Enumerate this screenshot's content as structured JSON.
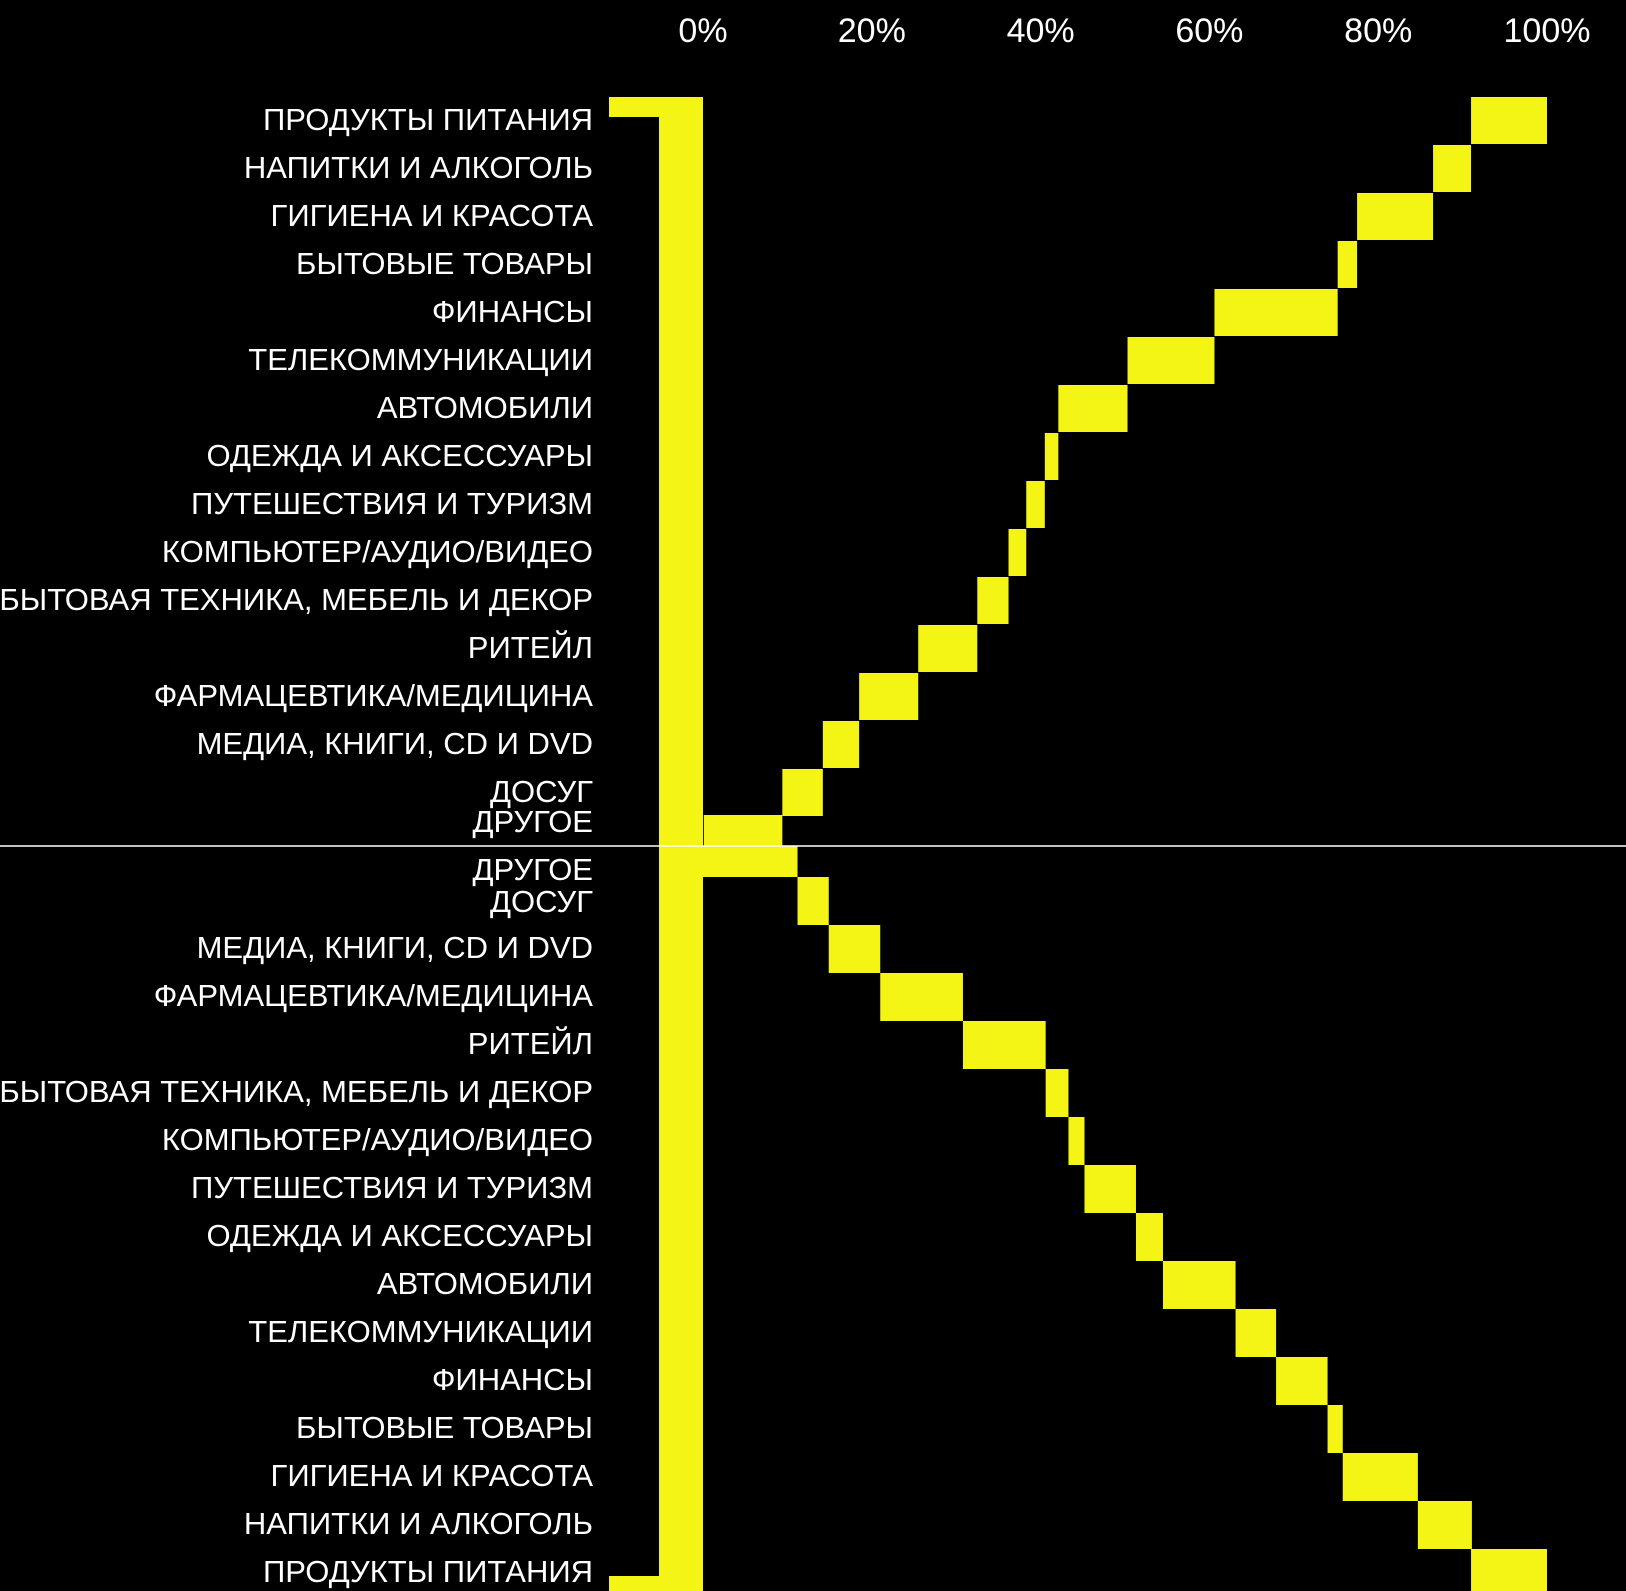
{
  "chart_data": {
    "type": "bar",
    "subtype": "waterfall-cumulative-mirrored",
    "bar_color": "#f5f515",
    "background": "#000000",
    "divider_color": "#ffffff",
    "x_ticks": [
      "0%",
      "20%",
      "40%",
      "60%",
      "80%",
      "100%"
    ],
    "xlim": [
      0,
      100
    ],
    "grid": false,
    "legend": "none",
    "panels": [
      {
        "name": "top",
        "order": "descending",
        "categories": [
          "ПРОДУКТЫ ПИТАНИЯ",
          "НАПИТКИ И АЛКОГОЛЬ",
          "ГИГИЕНА И КРАСОТА",
          "БЫТОВЫЕ ТОВАРЫ",
          "ФИНАНСЫ",
          "ТЕЛЕКОММУНИКАЦИИ",
          "АВТОМОБИЛИ",
          "ОДЕЖДА И АКСЕССУАРЫ",
          "ПУТЕШЕСТВИЯ И ТУРИЗМ",
          "КОМПЬЮТЕР/АУДИО/ВИДЕО",
          "БЫТОВАЯ ТЕХНИКА, МЕБЕЛЬ И ДЕКОР",
          "РИТЕЙЛ",
          "ФАРМАЦЕВТИКА/МЕДИЦИНА",
          "МЕДИА, КНИГИ, CD И DVD",
          "ДОСУГ",
          "ДРУГОЕ"
        ],
        "values": [
          9.0,
          4.5,
          9.0,
          2.3,
          14.6,
          10.3,
          8.2,
          1.6,
          2.2,
          2.1,
          3.7,
          7.0,
          7.0,
          4.3,
          4.8,
          9.3
        ],
        "cumulative_end": [
          100,
          91.0,
          86.5,
          77.5,
          75.2,
          60.6,
          50.3,
          42.1,
          40.5,
          38.3,
          36.2,
          32.5,
          25.5,
          18.5,
          14.2,
          9.4
        ]
      },
      {
        "name": "bottom",
        "order": "ascending",
        "categories": [
          "ДРУГОЕ",
          "ДОСУГ",
          "МЕДИА, КНИГИ, CD И DVD",
          "ФАРМАЦЕВТИКА/МЕДИЦИНА",
          "РИТЕЙЛ",
          "БЫТОВАЯ ТЕХНИКА, МЕБЕЛЬ И ДЕКОР",
          "КОМПЬЮТЕР/АУДИО/ВИДЕО",
          "ПУТЕШЕСТВИЯ И ТУРИЗМ",
          "ОДЕЖДА И АКСЕССУАРЫ",
          "АВТОМОБИЛИ",
          "ТЕЛЕКОММУНИКАЦИИ",
          "ФИНАНСЫ",
          "БЫТОВЫЕ ТОВАРЫ",
          "ГИГИЕНА И КРАСОТА",
          "НАПИТКИ И АЛКОГОЛЬ",
          "ПРОДУКТЫ ПИТАНИЯ"
        ],
        "values": [
          11.2,
          3.7,
          6.1,
          9.8,
          9.8,
          2.7,
          1.9,
          6.1,
          3.2,
          8.6,
          4.8,
          6.1,
          1.8,
          8.9,
          6.4,
          9.0
        ],
        "cumulative_end": [
          11.2,
          14.9,
          21.0,
          30.8,
          40.6,
          43.3,
          45.2,
          51.3,
          54.5,
          63.1,
          67.9,
          74.0,
          75.8,
          84.7,
          91.1,
          100
        ]
      }
    ]
  }
}
